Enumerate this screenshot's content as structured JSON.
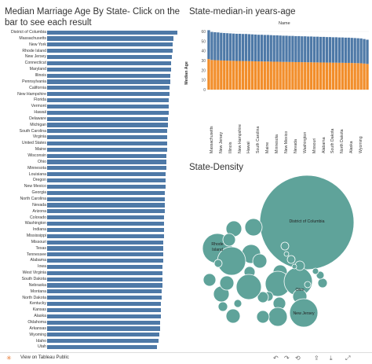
{
  "titles": {
    "left": "Median Marriage Age By State- Click on the bar to see each result",
    "top_right": "State-median-in years-age",
    "bottom_right": "State-Density"
  },
  "footer": {
    "link": "View on Tableau Public",
    "icons": [
      "tableau-logo-icon",
      "undo-icon",
      "redo-icon",
      "revert-icon",
      "share-icon",
      "download-icon",
      "fullscreen-icon"
    ]
  },
  "colors": {
    "bar_blue": "#4e79a7",
    "bar_orange": "#f28e2b",
    "bubble_teal": "#5fa39a"
  },
  "state_list": [
    "District of Columbia",
    "Massachusetts",
    "New York",
    "Rhode Island",
    "New Jersey",
    "Connecticut",
    "Maryland",
    "Illinois",
    "Pennsylvania",
    "California",
    "New Hampshire",
    "Florida",
    "Vermont",
    "Hawaii",
    "Delaware",
    "Michigan",
    "South Carolina",
    "Virginia",
    "United States",
    "Maine",
    "Wisconsin",
    "Ohio",
    "Minnesota",
    "Louisiana",
    "Oregon",
    "New Mexico",
    "Georgia",
    "North Carolina",
    "Nevada",
    "Arizona",
    "Colorado",
    "Washington",
    "Indiana",
    "Mississippi",
    "Missouri",
    "Texas",
    "Tennessee",
    "Alabama",
    "Iowa",
    "West Virginia",
    "South Dakota",
    "Nebraska",
    "Montana",
    "North Dakota",
    "Kentucky",
    "Kansas",
    "Alaska",
    "Oklahoma",
    "Arkansas",
    "Wyoming",
    "Idaho",
    "Utah"
  ],
  "chart_data": [
    {
      "type": "bar",
      "orientation": "horizontal",
      "title": "Median Marriage Age By State- Click on the bar to see each result",
      "categories": [
        "District of Columbia",
        "Massachusetts",
        "New York",
        "Rhode Island",
        "New Jersey",
        "Connecticut",
        "Maryland",
        "Illinois",
        "Pennsylvania",
        "California",
        "New Hampshire",
        "Florida",
        "Vermont",
        "Hawaii",
        "Delaware",
        "Michigan",
        "South Carolina",
        "Virginia",
        "United States",
        "Maine",
        "Wisconsin",
        "Ohio",
        "Minnesota",
        "Louisiana",
        "Oregon",
        "New Mexico",
        "Georgia",
        "North Carolina",
        "Nevada",
        "Arizona",
        "Colorado",
        "Washington",
        "Indiana",
        "Mississippi",
        "Missouri",
        "Texas",
        "Tennessee",
        "Alabama",
        "Iowa",
        "West Virginia",
        "South Dakota",
        "Nebraska",
        "Montana",
        "North Dakota",
        "Kentucky",
        "Kansas",
        "Alaska",
        "Oklahoma",
        "Arkansas",
        "Wyoming",
        "Idaho",
        "Utah"
      ],
      "values": [
        31.5,
        30.6,
        30.4,
        30.3,
        30.1,
        30.0,
        29.9,
        29.8,
        29.7,
        29.6,
        29.6,
        29.5,
        29.5,
        29.4,
        29.3,
        29.2,
        29.1,
        29.1,
        29.0,
        29.0,
        28.9,
        28.8,
        28.8,
        28.7,
        28.6,
        28.6,
        28.5,
        28.5,
        28.4,
        28.4,
        28.3,
        28.3,
        28.2,
        28.2,
        28.1,
        28.1,
        28.0,
        28.0,
        27.9,
        27.9,
        27.8,
        27.8,
        27.7,
        27.7,
        27.6,
        27.6,
        27.5,
        27.4,
        27.3,
        27.2,
        26.9,
        26.5
      ],
      "xlim": [
        0,
        31.5
      ]
    },
    {
      "type": "bar",
      "stacked": true,
      "title": "State-median-in years-age",
      "column_header": "Name",
      "ylabel": "Median Age",
      "ylim": [
        0,
        60
      ],
      "yticks": [
        0,
        10,
        20,
        30,
        40,
        50,
        60
      ],
      "x_tick_labels": [
        "Massachusetts",
        "New Jersey",
        "Illinois",
        "New Hampshire",
        "Hawaii",
        "South Carolina",
        "Maine",
        "Minnesota",
        "New Mexico",
        "Nevada",
        "Washington",
        "Missouri",
        "Alabama",
        "South Dakota",
        "North Dakota",
        "Alaska",
        "Wyoming"
      ],
      "series": [
        {
          "values": [
            31.5,
            30.6,
            30.4,
            30.3,
            30.1,
            30.0,
            29.9,
            29.8,
            29.7,
            29.6,
            29.6,
            29.5,
            29.5,
            29.4,
            29.3,
            29.2,
            29.1,
            29.1,
            29.0,
            29.0,
            28.9,
            28.8,
            28.8,
            28.7,
            28.6,
            28.6,
            28.5,
            28.5,
            28.4,
            28.4,
            28.3,
            28.3,
            28.2,
            28.2,
            28.1,
            28.1,
            28.0,
            28.0,
            27.9,
            27.9,
            27.8,
            27.8,
            27.7,
            27.7,
            27.6,
            27.6,
            27.5,
            27.4,
            27.3,
            27.2,
            26.9,
            26.5
          ],
          "color": "#f28e2b"
        },
        {
          "values": [
            29.8,
            28.9,
            28.8,
            28.7,
            28.5,
            28.4,
            28.3,
            28.2,
            28.1,
            28.0,
            28.0,
            27.9,
            27.9,
            27.8,
            27.7,
            27.6,
            27.5,
            27.5,
            27.4,
            27.4,
            27.3,
            27.2,
            27.2,
            27.1,
            27.0,
            27.0,
            26.9,
            26.9,
            26.8,
            26.8,
            26.7,
            26.7,
            26.6,
            26.6,
            26.5,
            26.5,
            26.4,
            26.4,
            26.3,
            26.3,
            26.2,
            26.2,
            26.1,
            26.1,
            26.0,
            26.0,
            25.9,
            25.8,
            25.7,
            25.6,
            25.3,
            25.0
          ],
          "color": "#4e79a7"
        }
      ]
    },
    {
      "type": "bubble",
      "title": "State-Density",
      "labeled": [
        "District of Columbia",
        "Rhode Island",
        "Ohio",
        "New Jersey"
      ]
    }
  ]
}
